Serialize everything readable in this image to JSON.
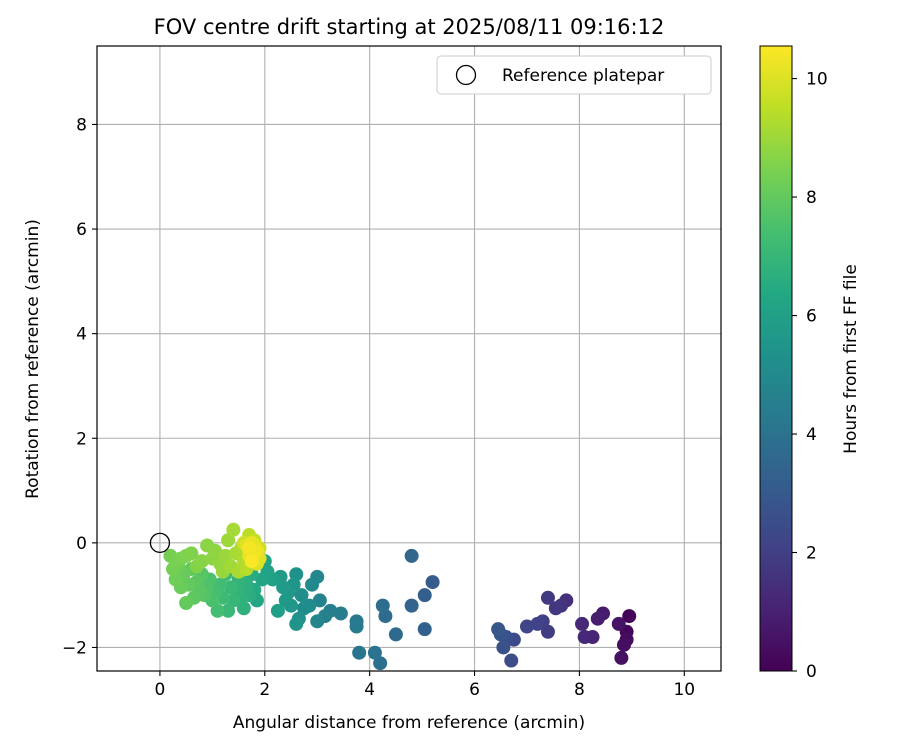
{
  "chart_data": {
    "type": "scatter",
    "title": "FOV centre drift starting at 2025/08/11 09:16:12",
    "xlabel": "Angular distance from reference (arcmin)",
    "ylabel": "Rotation from reference (arcmin)",
    "xlim": [
      -1.2,
      10.7
    ],
    "ylim": [
      -2.45,
      9.5
    ],
    "xticks": [
      0,
      2,
      4,
      6,
      8,
      10
    ],
    "yticks": [
      -2,
      0,
      2,
      4,
      6,
      8
    ],
    "xtick_labels": [
      "0",
      "2",
      "4",
      "6",
      "8",
      "10"
    ],
    "ytick_labels": [
      "−2",
      "0",
      "2",
      "4",
      "6",
      "8"
    ],
    "grid": true,
    "colormap": "viridis",
    "colorbar": {
      "label": "Hours from first FF file",
      "range": [
        0,
        10.55
      ],
      "ticks": [
        0,
        2,
        4,
        6,
        8,
        10
      ],
      "tick_labels": [
        "0",
        "2",
        "4",
        "6",
        "8",
        "10"
      ]
    },
    "reference": {
      "label": "Reference platepar",
      "x": 0,
      "y": 0
    },
    "legend": {
      "position": "top-right",
      "entries": [
        "Reference platepar"
      ]
    },
    "series": [
      {
        "points": [
          [
            8.95,
            -1.4,
            0.1
          ],
          [
            8.9,
            -1.7,
            0.2
          ],
          [
            8.9,
            -1.85,
            0.3
          ],
          [
            8.85,
            -1.95,
            0.4
          ],
          [
            8.8,
            -2.2,
            0.5
          ],
          [
            8.75,
            -1.55,
            0.6
          ],
          [
            8.45,
            -1.35,
            0.8
          ],
          [
            8.35,
            -1.45,
            0.9
          ],
          [
            8.25,
            -1.8,
            1.1
          ],
          [
            8.1,
            -1.8,
            1.2
          ],
          [
            8.05,
            -1.55,
            1.3
          ],
          [
            7.75,
            -1.1,
            1.5
          ],
          [
            7.65,
            -1.2,
            1.6
          ],
          [
            7.55,
            -1.25,
            1.7
          ],
          [
            7.4,
            -1.05,
            1.8
          ],
          [
            7.4,
            -1.7,
            1.9
          ],
          [
            7.3,
            -1.5,
            2.0
          ],
          [
            7.2,
            -1.55,
            2.1
          ],
          [
            7.0,
            -1.6,
            2.2
          ],
          [
            6.75,
            -1.85,
            2.4
          ],
          [
            6.7,
            -2.25,
            2.5
          ],
          [
            6.6,
            -1.8,
            2.6
          ],
          [
            6.55,
            -2.0,
            2.7
          ],
          [
            6.5,
            -1.75,
            2.8
          ],
          [
            6.45,
            -1.65,
            2.9
          ],
          [
            5.2,
            -0.75,
            3.1
          ],
          [
            5.05,
            -1.0,
            3.2
          ],
          [
            5.05,
            -1.65,
            3.3
          ],
          [
            4.8,
            -1.2,
            3.4
          ],
          [
            4.8,
            -0.25,
            3.5
          ],
          [
            4.5,
            -1.75,
            3.6
          ],
          [
            4.3,
            -1.4,
            3.7
          ],
          [
            4.25,
            -1.2,
            3.8
          ],
          [
            4.2,
            -2.3,
            3.9
          ],
          [
            4.1,
            -2.1,
            4.0
          ],
          [
            3.8,
            -2.1,
            4.1
          ],
          [
            3.75,
            -1.5,
            4.2
          ],
          [
            3.75,
            -1.6,
            4.3
          ],
          [
            3.45,
            -1.35,
            4.4
          ],
          [
            3.25,
            -1.3,
            4.5
          ],
          [
            3.15,
            -1.4,
            4.6
          ],
          [
            3.05,
            -1.1,
            4.7
          ],
          [
            3.0,
            -1.5,
            4.8
          ],
          [
            3.0,
            -0.65,
            4.9
          ],
          [
            2.9,
            -0.8,
            5.0
          ],
          [
            2.85,
            -1.2,
            5.05
          ],
          [
            2.75,
            -1.25,
            5.1
          ],
          [
            2.7,
            -1.0,
            5.2
          ],
          [
            2.65,
            -1.45,
            5.3
          ],
          [
            2.6,
            -0.6,
            5.35
          ],
          [
            2.6,
            -1.55,
            5.4
          ],
          [
            2.55,
            -0.8,
            5.5
          ],
          [
            2.5,
            -1.2,
            5.55
          ],
          [
            2.45,
            -0.95,
            5.6
          ],
          [
            2.4,
            -1.1,
            5.7
          ],
          [
            2.35,
            -0.85,
            5.75
          ],
          [
            2.3,
            -0.65,
            5.8
          ],
          [
            2.25,
            -1.3,
            5.9
          ],
          [
            2.15,
            -0.7,
            6.0
          ],
          [
            2.05,
            -0.55,
            6.1
          ],
          [
            2.0,
            -0.35,
            6.15
          ],
          [
            1.95,
            -0.7,
            6.2
          ],
          [
            1.85,
            -1.1,
            6.3
          ],
          [
            1.8,
            -0.9,
            6.4
          ],
          [
            1.75,
            -0.6,
            6.5
          ],
          [
            1.7,
            -1.0,
            6.6
          ],
          [
            1.65,
            -0.8,
            6.7
          ],
          [
            1.6,
            -1.25,
            6.75
          ],
          [
            1.55,
            -1.05,
            6.8
          ],
          [
            1.5,
            -0.7,
            6.85
          ],
          [
            1.45,
            -0.9,
            6.9
          ],
          [
            1.4,
            -1.1,
            7.0
          ],
          [
            1.35,
            -0.85,
            7.05
          ],
          [
            1.3,
            -1.3,
            7.1
          ],
          [
            1.25,
            -0.6,
            7.15
          ],
          [
            1.2,
            -1.05,
            7.2
          ],
          [
            1.15,
            -0.8,
            7.3
          ],
          [
            1.1,
            -1.3,
            7.35
          ],
          [
            1.05,
            -0.95,
            7.4
          ],
          [
            1.0,
            -1.1,
            7.5
          ],
          [
            0.95,
            -0.7,
            7.55
          ],
          [
            0.9,
            -0.85,
            7.6
          ],
          [
            0.85,
            -1.0,
            7.7
          ],
          [
            0.8,
            -0.6,
            7.75
          ],
          [
            0.75,
            -0.9,
            7.8
          ],
          [
            0.7,
            -0.75,
            7.85
          ],
          [
            0.65,
            -1.05,
            7.9
          ],
          [
            0.6,
            -0.5,
            7.95
          ],
          [
            0.55,
            -0.8,
            8.0
          ],
          [
            0.5,
            -1.15,
            8.05
          ],
          [
            0.45,
            -0.6,
            8.1
          ],
          [
            0.4,
            -0.85,
            8.15
          ],
          [
            0.35,
            -0.45,
            8.2
          ],
          [
            0.3,
            -0.7,
            8.25
          ],
          [
            0.25,
            -0.5,
            8.3
          ],
          [
            0.2,
            -0.25,
            8.35
          ],
          [
            0.3,
            -0.35,
            8.4
          ],
          [
            0.4,
            -0.3,
            8.45
          ],
          [
            0.5,
            -0.25,
            8.5
          ],
          [
            0.6,
            -0.2,
            8.55
          ],
          [
            0.7,
            -0.45,
            8.6
          ],
          [
            0.8,
            -0.35,
            8.65
          ],
          [
            0.9,
            -0.05,
            8.7
          ],
          [
            1.0,
            -0.3,
            8.75
          ],
          [
            1.05,
            -0.15,
            8.8
          ],
          [
            1.15,
            -0.4,
            8.85
          ],
          [
            1.2,
            -0.55,
            8.9
          ],
          [
            1.25,
            -0.25,
            8.95
          ],
          [
            1.3,
            0.05,
            9.0
          ],
          [
            1.35,
            -0.45,
            9.05
          ],
          [
            1.4,
            0.25,
            9.1
          ],
          [
            1.45,
            -0.2,
            9.15
          ],
          [
            1.5,
            -0.55,
            9.2
          ],
          [
            1.55,
            -0.1,
            9.25
          ],
          [
            1.6,
            -0.35,
            9.3
          ],
          [
            1.65,
            -0.5,
            9.4
          ],
          [
            1.7,
            0.15,
            9.45
          ],
          [
            1.75,
            -0.3,
            9.5
          ],
          [
            1.8,
            0.05,
            9.6
          ],
          [
            1.85,
            -0.25,
            9.65
          ],
          [
            1.9,
            -0.1,
            9.7
          ],
          [
            1.6,
            0.0,
            9.75
          ],
          [
            1.7,
            -0.15,
            9.8
          ],
          [
            1.8,
            -0.3,
            9.85
          ],
          [
            1.75,
            -0.2,
            9.9
          ],
          [
            1.85,
            -0.4,
            9.95
          ],
          [
            1.65,
            -0.05,
            10.0
          ],
          [
            1.9,
            -0.3,
            10.05
          ],
          [
            1.8,
            -0.05,
            10.1
          ],
          [
            1.7,
            -0.25,
            10.15
          ],
          [
            1.75,
            0.0,
            10.2
          ],
          [
            1.85,
            -0.15,
            10.25
          ],
          [
            1.8,
            -0.2,
            10.3
          ],
          [
            1.7,
            -0.1,
            10.4
          ],
          [
            1.75,
            -0.35,
            10.5
          ]
        ]
      }
    ]
  }
}
